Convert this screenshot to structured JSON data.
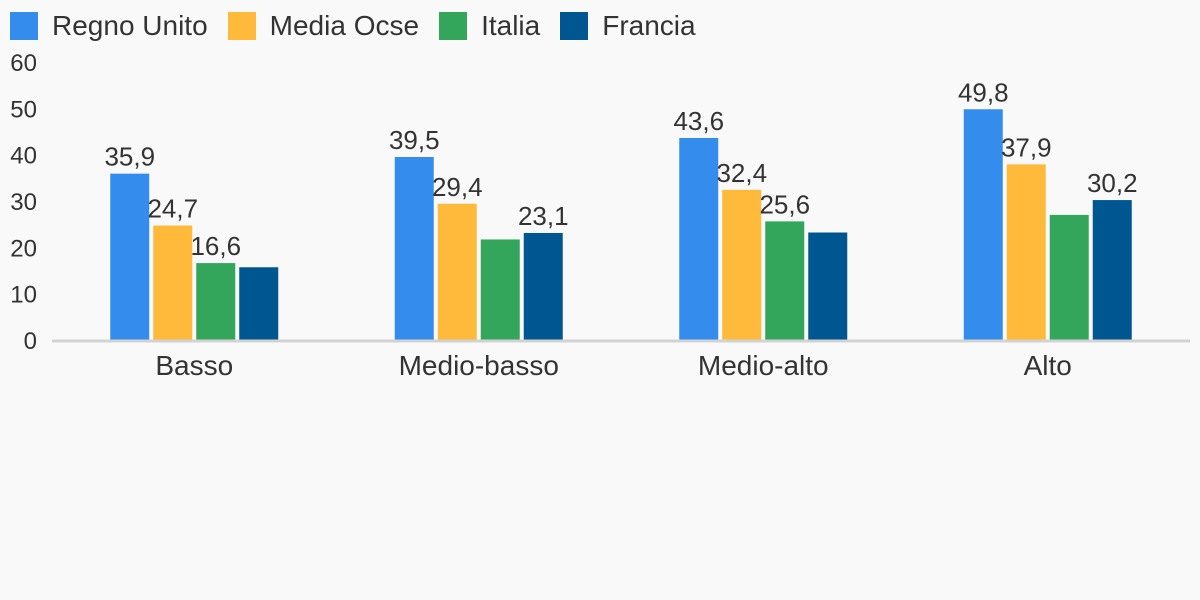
{
  "chart_data": {
    "type": "bar",
    "categories": [
      "Basso",
      "Medio-basso",
      "Medio-alto",
      "Alto"
    ],
    "series": [
      {
        "name": "Regno Unito",
        "color": "#348ced",
        "values": [
          35.9,
          39.5,
          43.6,
          49.8
        ],
        "labels": [
          "35,9",
          "39,5",
          "43,6",
          "49,8"
        ]
      },
      {
        "name": "Media Ocse",
        "color": "#ffb93b",
        "values": [
          24.7,
          29.4,
          32.4,
          37.9
        ],
        "labels": [
          "24,7",
          "29,4",
          "32,4",
          "37,9"
        ]
      },
      {
        "name": "Italia",
        "color": "#33a65c",
        "values": [
          16.6,
          21.7,
          25.6,
          27.0
        ],
        "labels": [
          "16,6",
          "",
          "25,6",
          ""
        ]
      },
      {
        "name": "Francia",
        "color": "#005690",
        "values": [
          15.7,
          23.1,
          23.2,
          30.2
        ],
        "labels": [
          "",
          "23,1",
          "",
          "30,2"
        ]
      }
    ],
    "y_ticks": [
      "0",
      "10",
      "20",
      "30",
      "40",
      "50",
      "60"
    ],
    "ylim": [
      0,
      60
    ],
    "legend_position": "top-left",
    "grid": false,
    "axis_color": "#d2d2d2"
  }
}
